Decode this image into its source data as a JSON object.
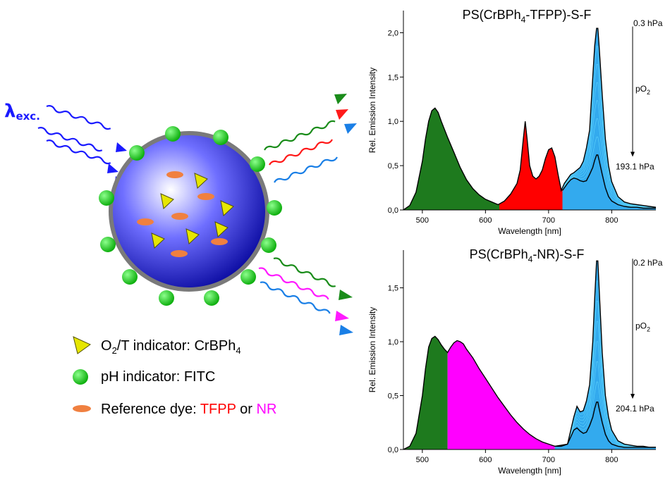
{
  "schematic": {
    "excitation_label": "λ",
    "excitation_sub": "exc.",
    "legend": [
      {
        "icon": "yellow-triangle",
        "prefix": "O",
        "sub1": "2",
        "mid": "/T indicator: CrBPh",
        "sub2": "4"
      },
      {
        "icon": "green-circle",
        "text": "pH indicator: FITC"
      },
      {
        "icon": "orange-ellipse",
        "text": "Reference dye: ",
        "ref1": "TFPP",
        "or": " or ",
        "ref2": "NR"
      }
    ],
    "colors": {
      "ref1": "#ff0000",
      "ref2": "#ff00ff",
      "excitation": "#1a1aff",
      "emission_green": "#1a8c1a",
      "emission_red": "#ff1a1a",
      "emission_blue": "#1a7fe6",
      "emission_magenta": "#ff1aff"
    }
  },
  "chart_data": [
    {
      "type": "area",
      "title_pre": "PS(CrBPh",
      "title_sub": "4",
      "title_post": "-TFPP)-S-F",
      "xlabel": "Wavelength [nm]",
      "ylabel": "Rel. Emission Intensity",
      "xlim": [
        470,
        870
      ],
      "ylim": [
        0,
        2.25
      ],
      "xticks": [
        500,
        600,
        700,
        800
      ],
      "yticks": [
        0,
        0.5,
        1.0,
        1.5,
        2.0
      ],
      "ytick_labels": [
        "0,0",
        "0,5",
        "1,0",
        "1,5",
        "2,0"
      ],
      "top_annotation": "0.3 hPa",
      "bottom_annotation": "193.1 hPa",
      "arrow_label_pre": "pO",
      "arrow_label_sub": "2",
      "arrow_from": 2.07,
      "arrow_to": 0.6,
      "fill_regions": [
        {
          "from": 470,
          "to": 622,
          "color": "#1e7a1e"
        },
        {
          "from": 622,
          "to": 722,
          "color": "#ff0000"
        },
        {
          "from": 722,
          "to": 870,
          "color": "#33aaee"
        }
      ],
      "upper_curve": {
        "x": [
          470,
          480,
          490,
          500,
          505,
          510,
          515,
          520,
          525,
          530,
          540,
          550,
          560,
          570,
          580,
          590,
          600,
          610,
          620,
          630,
          640,
          650,
          655,
          660,
          663,
          666,
          670,
          675,
          680,
          685,
          690,
          695,
          700,
          705,
          710,
          715,
          720,
          725,
          730,
          735,
          740,
          745,
          750,
          755,
          760,
          765,
          770,
          773,
          776,
          778,
          780,
          785,
          790,
          795,
          800,
          810,
          820,
          830,
          840,
          850,
          860,
          870
        ],
        "y": [
          0.0,
          0.05,
          0.2,
          0.55,
          0.8,
          1.0,
          1.12,
          1.15,
          1.1,
          1.0,
          0.82,
          0.65,
          0.48,
          0.34,
          0.24,
          0.17,
          0.12,
          0.09,
          0.06,
          0.1,
          0.18,
          0.3,
          0.45,
          0.8,
          1.0,
          0.8,
          0.5,
          0.38,
          0.35,
          0.38,
          0.45,
          0.58,
          0.68,
          0.7,
          0.6,
          0.4,
          0.22,
          0.3,
          0.35,
          0.4,
          0.42,
          0.45,
          0.48,
          0.55,
          0.7,
          0.9,
          1.5,
          1.85,
          2.05,
          2.05,
          1.85,
          1.3,
          0.8,
          0.5,
          0.32,
          0.15,
          0.09,
          0.07,
          0.06,
          0.05,
          0.04,
          0.03
        ]
      },
      "lower_curve": {
        "x": [
          722,
          730,
          735,
          740,
          745,
          750,
          755,
          760,
          765,
          770,
          773,
          776,
          778,
          780,
          785,
          790,
          795,
          800,
          810,
          820,
          830,
          840,
          850,
          860,
          870
        ],
        "y": [
          0.22,
          0.3,
          0.34,
          0.36,
          0.35,
          0.33,
          0.32,
          0.33,
          0.4,
          0.48,
          0.56,
          0.62,
          0.62,
          0.56,
          0.4,
          0.25,
          0.15,
          0.1,
          0.06,
          0.04,
          0.03,
          0.03,
          0.02,
          0.02,
          0.02
        ]
      }
    },
    {
      "type": "area",
      "title_pre": "PS(CrBPh",
      "title_sub": "4",
      "title_post": "-NR)-S-F",
      "xlabel": "Wavelength [nm]",
      "ylabel": "Rel. Emission Intensity",
      "xlim": [
        470,
        870
      ],
      "ylim": [
        0,
        1.85
      ],
      "xticks": [
        500,
        600,
        700,
        800
      ],
      "yticks": [
        0,
        0.5,
        1.0,
        1.5
      ],
      "ytick_labels": [
        "0,0",
        "0,5",
        "1,0",
        "1,5"
      ],
      "top_annotation": "0.2 hPa",
      "bottom_annotation": "204.1 hPa",
      "arrow_label_pre": "pO",
      "arrow_label_sub": "2",
      "arrow_from": 1.77,
      "arrow_to": 0.47,
      "fill_regions": [
        {
          "from": 470,
          "to": 540,
          "color": "#1e7a1e"
        },
        {
          "from": 540,
          "to": 710,
          "color": "#ff00ff"
        },
        {
          "from": 710,
          "to": 870,
          "color": "#33aaee"
        }
      ],
      "upper_curve": {
        "x": [
          470,
          480,
          490,
          500,
          505,
          510,
          515,
          520,
          525,
          530,
          535,
          540,
          545,
          550,
          555,
          560,
          565,
          570,
          580,
          590,
          600,
          610,
          620,
          630,
          640,
          650,
          660,
          670,
          680,
          690,
          700,
          710,
          720,
          730,
          740,
          745,
          750,
          755,
          760,
          765,
          770,
          773,
          776,
          778,
          780,
          785,
          790,
          795,
          800,
          810,
          820,
          830,
          840,
          850,
          860,
          870
        ],
        "y": [
          0.0,
          0.03,
          0.15,
          0.5,
          0.75,
          0.95,
          1.03,
          1.05,
          1.02,
          0.97,
          0.93,
          0.9,
          0.95,
          0.99,
          1.01,
          1.0,
          0.98,
          0.93,
          0.85,
          0.75,
          0.66,
          0.57,
          0.48,
          0.4,
          0.32,
          0.25,
          0.19,
          0.14,
          0.1,
          0.07,
          0.05,
          0.03,
          0.03,
          0.05,
          0.3,
          0.4,
          0.35,
          0.36,
          0.45,
          0.6,
          1.0,
          1.4,
          1.75,
          1.75,
          1.5,
          0.9,
          0.5,
          0.3,
          0.18,
          0.08,
          0.05,
          0.04,
          0.03,
          0.03,
          0.02,
          0.02
        ]
      },
      "lower_curve": {
        "x": [
          710,
          720,
          730,
          740,
          745,
          750,
          755,
          760,
          765,
          770,
          773,
          776,
          778,
          780,
          785,
          790,
          795,
          800,
          810,
          820,
          830,
          840,
          850,
          860,
          870
        ],
        "y": [
          0.03,
          0.04,
          0.05,
          0.18,
          0.2,
          0.17,
          0.15,
          0.16,
          0.22,
          0.3,
          0.38,
          0.44,
          0.44,
          0.38,
          0.25,
          0.14,
          0.08,
          0.05,
          0.03,
          0.02,
          0.02,
          0.02,
          0.02,
          0.02,
          0.02
        ]
      }
    }
  ]
}
